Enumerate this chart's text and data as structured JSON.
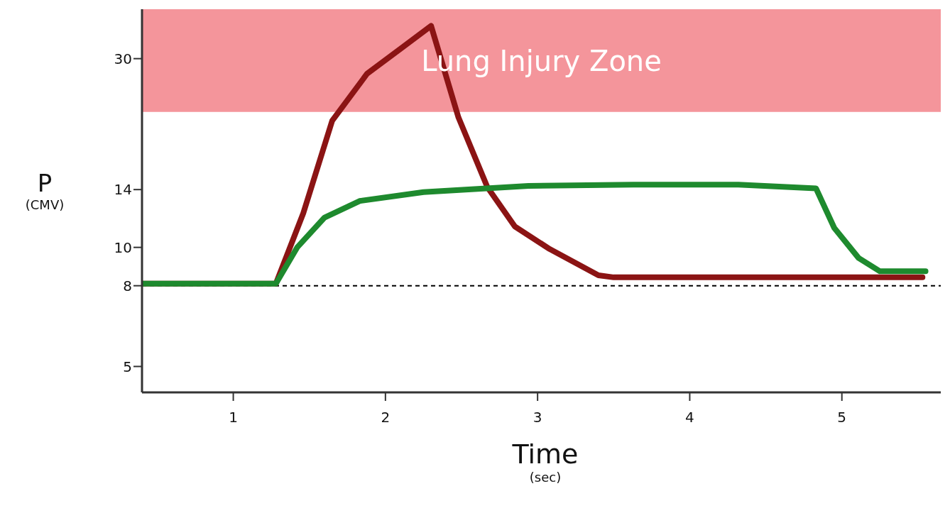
{
  "chart_data": {
    "type": "line",
    "xlabel": "Time (sec)",
    "ylabel": "P (CMV)",
    "xlim": [
      0.4,
      5.65
    ],
    "xticks": [
      1,
      2,
      3,
      4,
      5
    ],
    "ylim": [
      4.3,
      40
    ],
    "yticks": [
      5,
      8,
      10,
      14,
      30
    ],
    "log": true,
    "grid": false,
    "marker": "none",
    "line_style": "solid",
    "series": [
      {
        "color": "#8b1414",
        "x": [
          0.4,
          1.28,
          1.46,
          1.65,
          1.88,
          2.11,
          2.3,
          2.48,
          2.67,
          2.85,
          3.08,
          3.4,
          3.5,
          5.53
        ],
        "values": [
          8.1,
          8.1,
          12.2,
          20.9,
          27.5,
          32,
          36.3,
          21.3,
          14.2,
          11.3,
          9.9,
          8.5,
          8.4,
          8.4
        ]
      },
      {
        "color": "#1e8a2e",
        "x": [
          0.4,
          1.28,
          1.42,
          1.6,
          1.83,
          2.25,
          2.94,
          3.63,
          4.32,
          4.83,
          4.95,
          5.11,
          5.25,
          5.55
        ],
        "values": [
          8.1,
          8.1,
          10,
          11.9,
          13.1,
          13.8,
          14.3,
          14.4,
          14.4,
          14.1,
          11.2,
          9.4,
          8.7,
          8.7
        ]
      }
    ],
    "ref_lines": [
      {
        "axis": "y",
        "value": 8,
        "line_style": "dashed",
        "color": "#000000"
      }
    ],
    "bands": [
      {
        "axis": "y",
        "from": 22,
        "to": 40,
        "label": "Lung Injury Zone",
        "color": "#f4959b"
      }
    ]
  }
}
